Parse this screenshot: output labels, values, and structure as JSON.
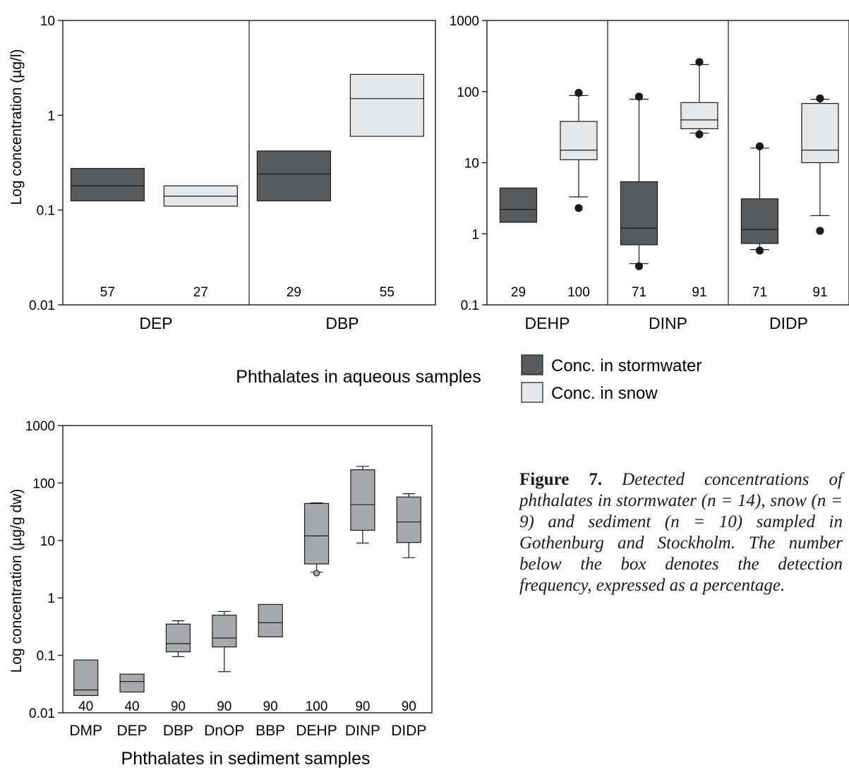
{
  "figure": {
    "caption_label": "Figure 7.",
    "caption_text": "Detected concentrations of phthalates in stormwater (n = 14), snow (n = 9) and sediment (n = 10) sampled in Gothenburg and Stockholm. The number below the box denotes the detection frequency, expressed as a percentage.",
    "aqueous_title": "Phthalates in aqueous samples",
    "sediment_title": "Phthalates in sediment samples"
  },
  "legend": [
    {
      "label": "Conc. in stormwater",
      "color": "#58595b"
    },
    {
      "label": "Conc. in snow",
      "color": "#e6e7e8"
    }
  ],
  "colors": {
    "stormwater": "#58595b",
    "snow": "#e6e7e8",
    "sediment": "#a7a9ac",
    "stroke": "#1a1a1a"
  },
  "chart_data": [
    {
      "type": "box",
      "scale": "log",
      "ylabel": "Log concentration (µg/l)",
      "ylim": [
        0.01,
        10
      ],
      "yticks": [
        "0.01",
        "0.1",
        "1",
        "10"
      ],
      "groups": [
        {
          "name": "DEP",
          "boxes": [
            {
              "series": "stormwater",
              "q1": 0.125,
              "median": 0.18,
              "q3": 0.275,
              "detection_frequency": "57"
            },
            {
              "series": "snow",
              "q1": 0.11,
              "median": 0.14,
              "q3": 0.18,
              "detection_frequency": "27"
            }
          ]
        },
        {
          "name": "DBP",
          "boxes": [
            {
              "series": "stormwater",
              "q1": 0.125,
              "median": 0.24,
              "q3": 0.42,
              "detection_frequency": "29"
            },
            {
              "series": "snow",
              "q1": 0.6,
              "median": 1.5,
              "q3": 2.7,
              "detection_frequency": "55"
            }
          ]
        }
      ]
    },
    {
      "type": "box",
      "scale": "log",
      "ylabel": "",
      "ylim": [
        0.1,
        1000
      ],
      "yticks": [
        "0.1",
        "1",
        "10",
        "100",
        "1000"
      ],
      "groups": [
        {
          "name": "DEHP",
          "boxes": [
            {
              "series": "stormwater",
              "q1": 1.45,
              "median": 2.2,
              "q3": 4.4,
              "detection_frequency": "29"
            },
            {
              "series": "snow",
              "q1": 11,
              "median": 15,
              "q3": 38,
              "whisker_low": 3.3,
              "whisker_high": 88,
              "outliers": [
                2.3,
                96
              ],
              "detection_frequency": "100"
            }
          ]
        },
        {
          "name": "DINP",
          "boxes": [
            {
              "series": "stormwater",
              "q1": 0.7,
              "median": 1.2,
              "q3": 5.4,
              "whisker_low": 0.38,
              "whisker_high": 78,
              "outliers": [
                0.35,
                85
              ],
              "detection_frequency": "71"
            },
            {
              "series": "snow",
              "q1": 30,
              "median": 40,
              "q3": 70,
              "whisker_low": 26,
              "whisker_high": 240,
              "outliers": [
                25,
                260
              ],
              "detection_frequency": "91"
            }
          ]
        },
        {
          "name": "DIDP",
          "boxes": [
            {
              "series": "stormwater",
              "q1": 0.73,
              "median": 1.15,
              "q3": 3.1,
              "whisker_low": 0.6,
              "whisker_high": 16,
              "outliers": [
                0.58,
                17
              ],
              "detection_frequency": "71"
            },
            {
              "series": "snow",
              "q1": 10,
              "median": 15,
              "q3": 68,
              "whisker_low": 1.8,
              "whisker_high": 78,
              "outliers": [
                1.1,
                80
              ],
              "detection_frequency": "91"
            }
          ]
        }
      ]
    },
    {
      "type": "box",
      "scale": "log",
      "ylabel": "Log concentration (µg/g dw)",
      "ylim": [
        0.01,
        1000
      ],
      "yticks": [
        "0.01",
        "0.1",
        "1",
        "10",
        "100",
        "1000"
      ],
      "boxes": [
        {
          "name": "DMP",
          "q1": 0.02,
          "median": 0.025,
          "q3": 0.083,
          "detection_frequency": "40"
        },
        {
          "name": "DEP",
          "q1": 0.023,
          "median": 0.035,
          "q3": 0.047,
          "detection_frequency": "40"
        },
        {
          "name": "DBP",
          "q1": 0.115,
          "median": 0.16,
          "q3": 0.35,
          "whisker_low": 0.095,
          "whisker_high": 0.4,
          "detection_frequency": "90"
        },
        {
          "name": "DnOP",
          "q1": 0.14,
          "median": 0.2,
          "q3": 0.5,
          "whisker_low": 0.052,
          "whisker_high": 0.58,
          "detection_frequency": "90"
        },
        {
          "name": "BBP",
          "q1": 0.21,
          "median": 0.37,
          "q3": 0.77,
          "detection_frequency": "90"
        },
        {
          "name": "DEHP",
          "q1": 3.9,
          "median": 12,
          "q3": 44,
          "whisker_low": 2.8,
          "whisker_high": 45,
          "outliers": [
            2.7
          ],
          "detection_frequency": "100"
        },
        {
          "name": "DINP",
          "q1": 15,
          "median": 42,
          "q3": 170,
          "whisker_low": 9,
          "whisker_high": 195,
          "detection_frequency": "90"
        },
        {
          "name": "DIDP",
          "q1": 9.2,
          "median": 21,
          "q3": 57,
          "whisker_low": 5,
          "whisker_high": 65,
          "detection_frequency": "90"
        }
      ]
    }
  ]
}
